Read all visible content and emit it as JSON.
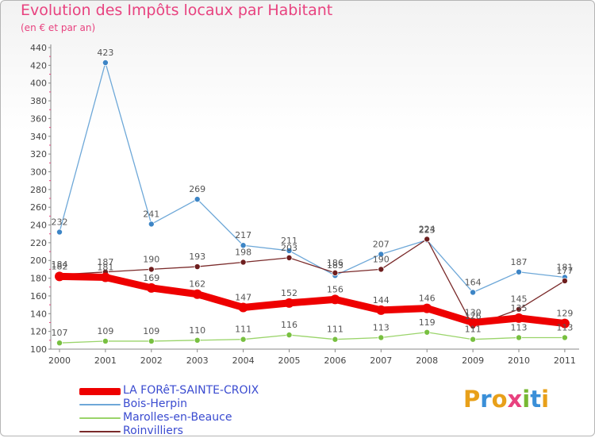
{
  "title": "Evolution des Impôts locaux par Habitant",
  "subtitle": "(en € et par an)",
  "logo": {
    "text": "Proxiti",
    "letters": [
      "P",
      "r",
      "o",
      "x",
      "i",
      "t",
      "i"
    ],
    "colors": [
      "#e8a01a",
      "#3a8fd8",
      "#e8a01a",
      "#e8427f",
      "#78b833",
      "#3a8fd8",
      "#e8a01a"
    ]
  },
  "chart_data": {
    "type": "line",
    "title": "Evolution des Impôts locaux par Habitant",
    "ylabel": "(en € et par an)",
    "xlabel": "",
    "ylim": [
      100,
      440
    ],
    "yticks": [
      100,
      120,
      140,
      160,
      180,
      200,
      220,
      240,
      260,
      280,
      300,
      320,
      340,
      360,
      380,
      400,
      420,
      440
    ],
    "categories": [
      "2000",
      "2001",
      "2002",
      "2003",
      "2004",
      "2005",
      "2006",
      "2007",
      "2008",
      "2009",
      "2010",
      "2011"
    ],
    "grid": false,
    "series": [
      {
        "name": "Bois-Herpin",
        "color": "#6ea8d8",
        "marker": "#3d85c6",
        "values": [
          232,
          423,
          241,
          269,
          217,
          211,
          183,
          207,
          223,
          164,
          187,
          181
        ],
        "labels": [
          "232",
          "423",
          "241",
          "269",
          "217",
          "211",
          "183",
          "207",
          "223",
          "164",
          "187",
          "181"
        ]
      },
      {
        "name": "Marolles-en-Beauce",
        "color": "#9ad46a",
        "marker": "#78c040",
        "values": [
          107,
          109,
          109,
          110,
          111,
          116,
          111,
          113,
          119,
          111,
          113,
          113
        ],
        "labels": [
          "107",
          "109",
          "109",
          "110",
          "111",
          "116",
          "111",
          "113",
          "119",
          "111",
          "113",
          "113"
        ]
      },
      {
        "name": "Roinvilliers",
        "color": "#7a2a2a",
        "marker": "#6e1e1e",
        "values": [
          184,
          187,
          190,
          193,
          198,
          203,
          186,
          190,
          224,
          126,
          145,
          177
        ],
        "labels": [
          "184",
          "187",
          "190",
          "193",
          "198",
          "203",
          "186",
          "190",
          "224",
          "126",
          "145",
          "177"
        ]
      },
      {
        "name": "LA FORêT-SAINTE-CROIX",
        "color": "#ee0000",
        "marker": "#ee0000",
        "values": [
          182,
          181,
          169,
          162,
          147,
          152,
          156,
          144,
          146,
          130,
          135,
          129
        ],
        "labels": [
          "182",
          "181",
          "169",
          "162",
          "147",
          "152",
          "156",
          "144",
          "146",
          "130",
          "135",
          "129"
        ]
      }
    ],
    "legend": [
      {
        "name": "LA FORêT-SAINTE-CROIX",
        "color": "#ee0000"
      },
      {
        "name": "Bois-Herpin",
        "color": "#6ea8d8"
      },
      {
        "name": "Marolles-en-Beauce",
        "color": "#9ad46a"
      },
      {
        "name": "Roinvilliers",
        "color": "#7a2a2a"
      }
    ]
  }
}
